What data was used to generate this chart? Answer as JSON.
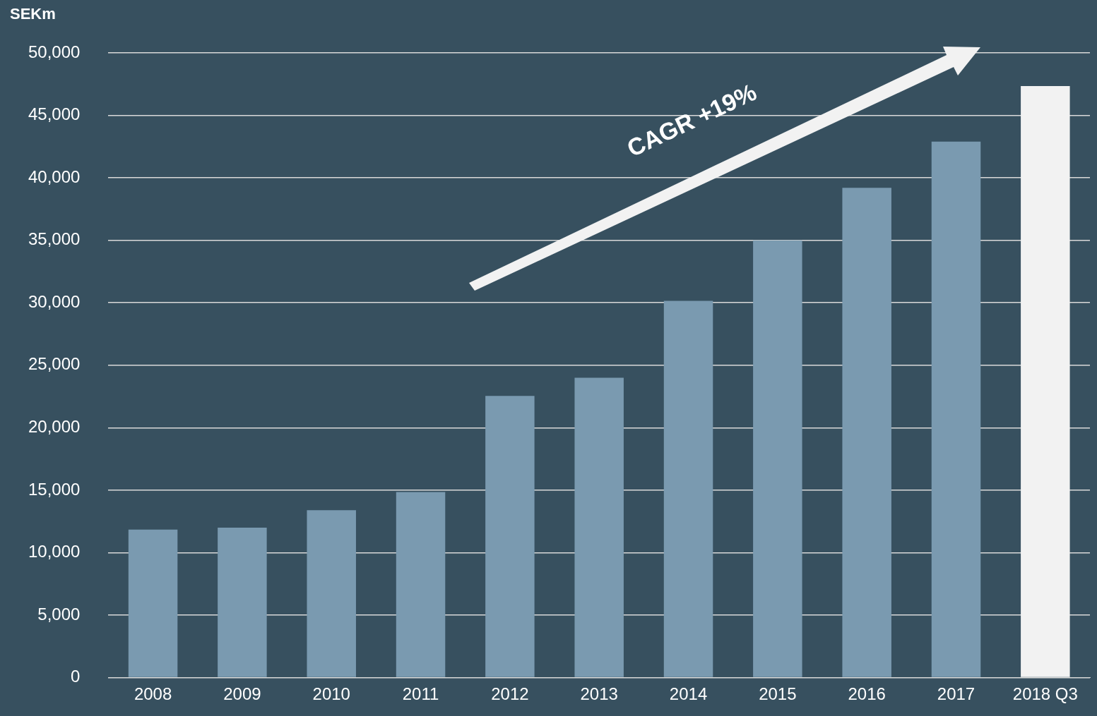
{
  "chart_data": {
    "type": "bar",
    "ylabel": "SEKm",
    "categories": [
      "2008",
      "2009",
      "2010",
      "2011",
      "2012",
      "2013",
      "2014",
      "2015",
      "2016",
      "2017",
      "2018 Q3"
    ],
    "values": [
      11850,
      12000,
      13400,
      14850,
      22550,
      24000,
      30150,
      35000,
      39200,
      42900,
      47350
    ],
    "colors": [
      "#7a9ab0",
      "#7a9ab0",
      "#7a9ab0",
      "#7a9ab0",
      "#7a9ab0",
      "#7a9ab0",
      "#7a9ab0",
      "#7a9ab0",
      "#7a9ab0",
      "#7a9ab0",
      "#f2f2f2"
    ],
    "ylim": [
      0,
      50000
    ],
    "yticks": [
      0,
      {
        "value": 5000,
        "label": "5,000"
      },
      {
        "value": 10000,
        "label": "10,000"
      },
      {
        "value": 15000,
        "label": "15,000"
      },
      {
        "value": 20000,
        "label": "20,000"
      },
      {
        "value": 25000,
        "label": "25,000"
      },
      {
        "value": 30000,
        "label": "30,000"
      },
      {
        "value": 35000,
        "label": "35,000"
      },
      {
        "value": 40000,
        "label": "40,000"
      },
      {
        "value": 45000,
        "label": "45,000"
      },
      {
        "value": 50000,
        "label": "50,000"
      }
    ],
    "grid": "y",
    "legend": false,
    "annotations": [
      "CAGR +19%"
    ]
  }
}
